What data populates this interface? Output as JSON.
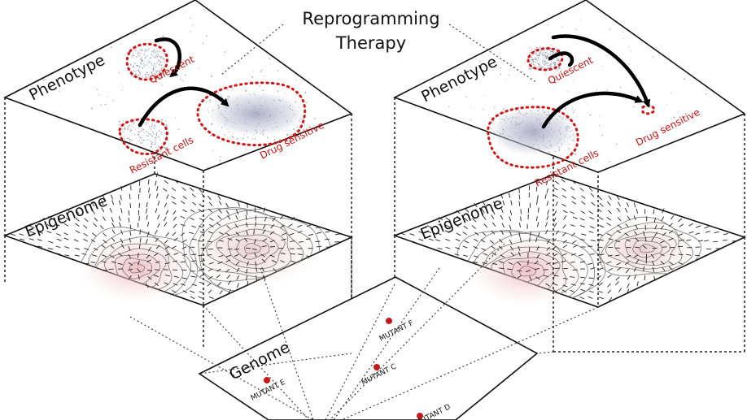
{
  "title_line1": "Reprogramming",
  "title_line2": "Therapy",
  "left": {
    "phenotype_label": "Phenotype",
    "epigenome_label": "Epigenome",
    "quiescent": "Quiescent",
    "resistant": "Resistant cells",
    "drug_sensitive": "Drug sensitive"
  },
  "right": {
    "phenotype_label": "Phenotype",
    "epigenome_label": "Epigenome",
    "quiescent": "Quiescent",
    "resistant": "Resistant cells",
    "drug_sensitive": "Drug sensitive"
  },
  "genome": {
    "label": "Genome",
    "mutants": [
      "MUTANT E",
      "MUTANT F",
      "MUTANT C",
      "MUTANT D"
    ]
  },
  "colors": {
    "region": "#d21515",
    "mutant_dot": "#c41a1a",
    "epigenome_glow": "#f2c3c3"
  }
}
